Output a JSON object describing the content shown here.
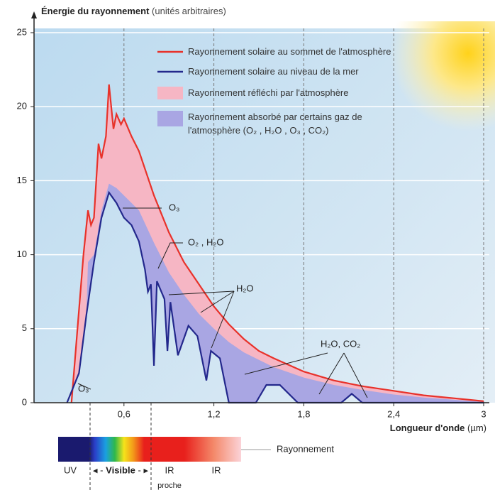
{
  "chart_data": {
    "type": "area",
    "y_label": "Énergie du rayonnement",
    "y_label_unit": "(unités arbitraires)",
    "x_label": "Longueur d'onde",
    "x_label_unit": "(µm)",
    "xlim": [
      0,
      3
    ],
    "ylim": [
      0,
      25
    ],
    "xticks": [
      {
        "value": 0.6,
        "label": "0,6"
      },
      {
        "value": 1.2,
        "label": "1,2"
      },
      {
        "value": 1.8,
        "label": "1,8"
      },
      {
        "value": 2.4,
        "label": "2,4"
      },
      3
    ],
    "yticks": [
      0,
      5,
      10,
      15,
      20,
      25
    ],
    "grid": true,
    "series": [
      {
        "name": "Rayonnement solaire au sommet de l'atmosphère",
        "color": "#e8322a",
        "x": [
          0.25,
          0.33,
          0.36,
          0.38,
          0.4,
          0.43,
          0.45,
          0.48,
          0.5,
          0.53,
          0.55,
          0.58,
          0.6,
          0.65,
          0.7,
          0.8,
          0.9,
          1.0,
          1.1,
          1.2,
          1.3,
          1.4,
          1.5,
          1.6,
          1.8,
          2.0,
          2.2,
          2.4,
          2.6,
          2.8,
          3.0
        ],
        "values": [
          0,
          10,
          13,
          12,
          12.5,
          17.5,
          16.5,
          18,
          21.5,
          18.5,
          19.5,
          18.8,
          19.2,
          18,
          17,
          14,
          11.5,
          9.5,
          8,
          6.5,
          5.3,
          4.3,
          3.5,
          3,
          2.1,
          1.5,
          1.1,
          0.8,
          0.5,
          0.3,
          0.1
        ]
      },
      {
        "name": "Rayonnement solaire au niveau de la mer",
        "color": "#23288c",
        "x": [
          0.22,
          0.3,
          0.35,
          0.4,
          0.45,
          0.5,
          0.55,
          0.6,
          0.65,
          0.7,
          0.74,
          0.76,
          0.78,
          0.8,
          0.82,
          0.87,
          0.89,
          0.91,
          0.96,
          1.03,
          1.09,
          1.15,
          1.18,
          1.24,
          1.3,
          1.48,
          1.55,
          1.64,
          1.76,
          2.05,
          2.12,
          2.19,
          3.0
        ],
        "values": [
          0,
          2,
          6,
          9.5,
          12.5,
          14.2,
          13.5,
          12.5,
          12,
          10.9,
          9,
          7.5,
          8,
          2.5,
          8.2,
          7,
          3.5,
          6.8,
          3.2,
          5.2,
          4.5,
          1.5,
          3.5,
          3,
          0,
          0,
          1.2,
          1.2,
          0,
          0,
          0.6,
          0,
          0
        ]
      },
      {
        "name": "Rayonnement réfléchi par l'atmosphère",
        "color": "#f6b6c4"
      },
      {
        "name": "Rayonnement absorbé par certains gaz de l'atmosphère (O₂ , H₂O , O₃ , CO₂)",
        "color": "#a9a6e3",
        "x": [
          0.33,
          0.36,
          0.4,
          0.45,
          0.5,
          0.55,
          0.6,
          0.7,
          0.8,
          0.9,
          1.0,
          1.1,
          1.2,
          1.3,
          1.4,
          1.5,
          1.6,
          1.8,
          2.0,
          2.2,
          2.4,
          2.6,
          2.8,
          3.0
        ],
        "values": [
          0,
          9.5,
          10,
          13,
          14.8,
          14.5,
          14,
          13,
          10.8,
          8.8,
          7.3,
          6,
          5,
          4.1,
          3.4,
          2.9,
          2.4,
          1.7,
          1.2,
          0.85,
          0.55,
          0.35,
          0.2,
          0.05
        ]
      }
    ],
    "annotations": [
      "O₃",
      "O₂ , H₂O",
      "H₂O",
      "O₃",
      "H₂O, CO₂"
    ],
    "spectrum": {
      "label": "Rayonnement",
      "bands": [
        "UV",
        "Visible",
        "IR",
        "proche",
        "IR"
      ]
    }
  }
}
